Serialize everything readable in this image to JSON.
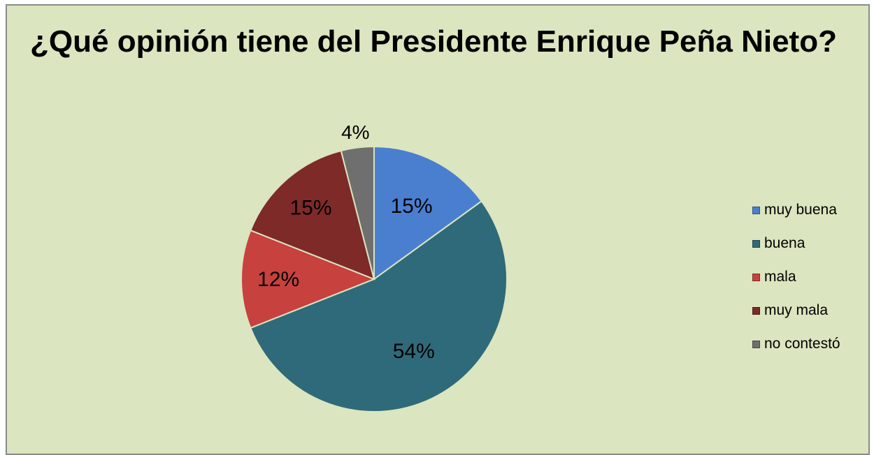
{
  "chart_data": {
    "type": "pie",
    "title": "¿Qué opinión tiene del Presidente Enrique Peña Nieto?",
    "categories": [
      "muy buena",
      "buena",
      "mala",
      "muy mala",
      "no contestó"
    ],
    "values": [
      15,
      54,
      12,
      15,
      4
    ],
    "labels": [
      "15%",
      "54%",
      "12%",
      "15%",
      "4%"
    ],
    "colors": [
      "#4a7fd0",
      "#2f6a7a",
      "#c7413f",
      "#7d2a29",
      "#6f6f6f"
    ],
    "legend_position": "right",
    "background": "#dbe5bf"
  }
}
